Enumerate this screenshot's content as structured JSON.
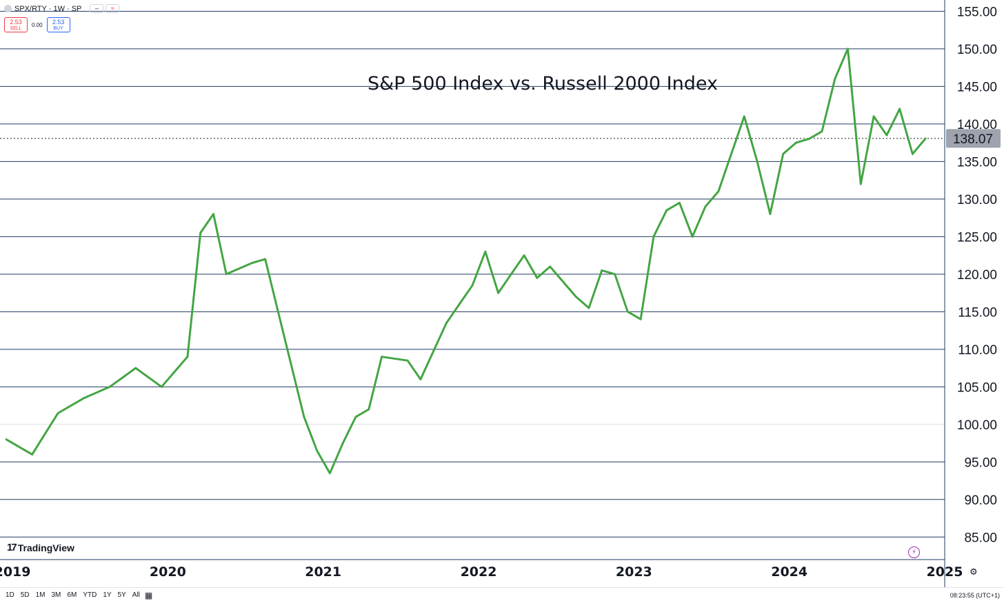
{
  "header": {
    "symbol": "SPX/RTY · 1W · SP",
    "mini_buttons": [
      "–",
      "≈"
    ]
  },
  "trade": {
    "sell_price": "2.53",
    "sell_label": "SELL",
    "spread": "0.00",
    "buy_price": "2.53",
    "buy_label": "BUY"
  },
  "logo": {
    "text": "TradingView"
  },
  "bottom_bar": {
    "ranges": [
      "1D",
      "5D",
      "1M",
      "3M",
      "6M",
      "YTD",
      "1Y",
      "5Y",
      "All"
    ],
    "clock": "08:23:55 (UTC+1)"
  },
  "colors": {
    "line": "#43a543",
    "grid": "#1e3a5f",
    "grid_light": "#d9dde6",
    "price_label_bg": "#9ea3ad"
  },
  "chart_data": {
    "type": "line",
    "title": "S&P 500 Index vs. Russell 2000 Index",
    "series": [
      {
        "name": "SPX/RTY",
        "x": [
          "2019-01",
          "2019-03",
          "2019-05",
          "2019-07",
          "2019-09",
          "2019-11",
          "2020-01",
          "2020-02",
          "2020-03",
          "2020-04",
          "2020-05",
          "2020-06",
          "2020-08",
          "2020-09",
          "2020-10",
          "2020-11",
          "2020-12",
          "2021-01",
          "2021-02",
          "2021-03",
          "2021-04",
          "2021-05",
          "2021-06",
          "2021-08",
          "2021-09",
          "2021-11",
          "2021-12",
          "2022-01",
          "2022-02",
          "2022-03",
          "2022-04",
          "2022-05",
          "2022-06",
          "2022-07",
          "2022-09",
          "2022-10",
          "2022-11",
          "2022-12",
          "2023-01",
          "2023-02",
          "2023-03",
          "2023-04",
          "2023-05",
          "2023-06",
          "2023-07",
          "2023-08",
          "2023-09",
          "2023-10",
          "2023-11",
          "2023-12",
          "2024-01",
          "2024-02",
          "2024-03",
          "2024-04",
          "2024-05",
          "2024-06",
          "2024-07",
          "2024-08",
          "2024-09",
          "2024-10",
          "2024-11",
          "2024-12"
        ],
        "values": [
          98.0,
          96.0,
          101.5,
          103.5,
          105.0,
          107.5,
          105.0,
          107.0,
          109.0,
          125.5,
          128.0,
          120.0,
          121.5,
          122.0,
          115.0,
          108.0,
          101.0,
          96.5,
          93.5,
          97.5,
          101.0,
          102.0,
          109.0,
          108.5,
          106.0,
          113.5,
          116.0,
          118.5,
          123.0,
          117.5,
          120.0,
          122.5,
          119.5,
          121.0,
          117.0,
          115.5,
          120.5,
          120.0,
          115.0,
          114.0,
          125.0,
          128.5,
          129.5,
          125.0,
          129.0,
          131.0,
          136.0,
          141.0,
          135.0,
          128.0,
          136.0,
          137.5,
          138.0,
          139.0,
          146.0,
          150.0,
          132.0,
          141.0,
          138.5,
          142.0,
          136.0,
          138.07
        ]
      }
    ],
    "x_ticks": [
      "2019",
      "2020",
      "2021",
      "2022",
      "2023",
      "2024",
      "2025"
    ],
    "y_ticks": [
      "85.00",
      "90.00",
      "95.00",
      "100.00",
      "105.00",
      "110.00",
      "115.00",
      "120.00",
      "125.00",
      "130.00",
      "135.00",
      "140.00",
      "145.00",
      "150.00",
      "155.00"
    ],
    "ylim": [
      82.0,
      156.5
    ],
    "xlim": [
      "2019-01",
      "2025-01"
    ],
    "last_value": "138.07",
    "xlabel": "",
    "ylabel": ""
  }
}
